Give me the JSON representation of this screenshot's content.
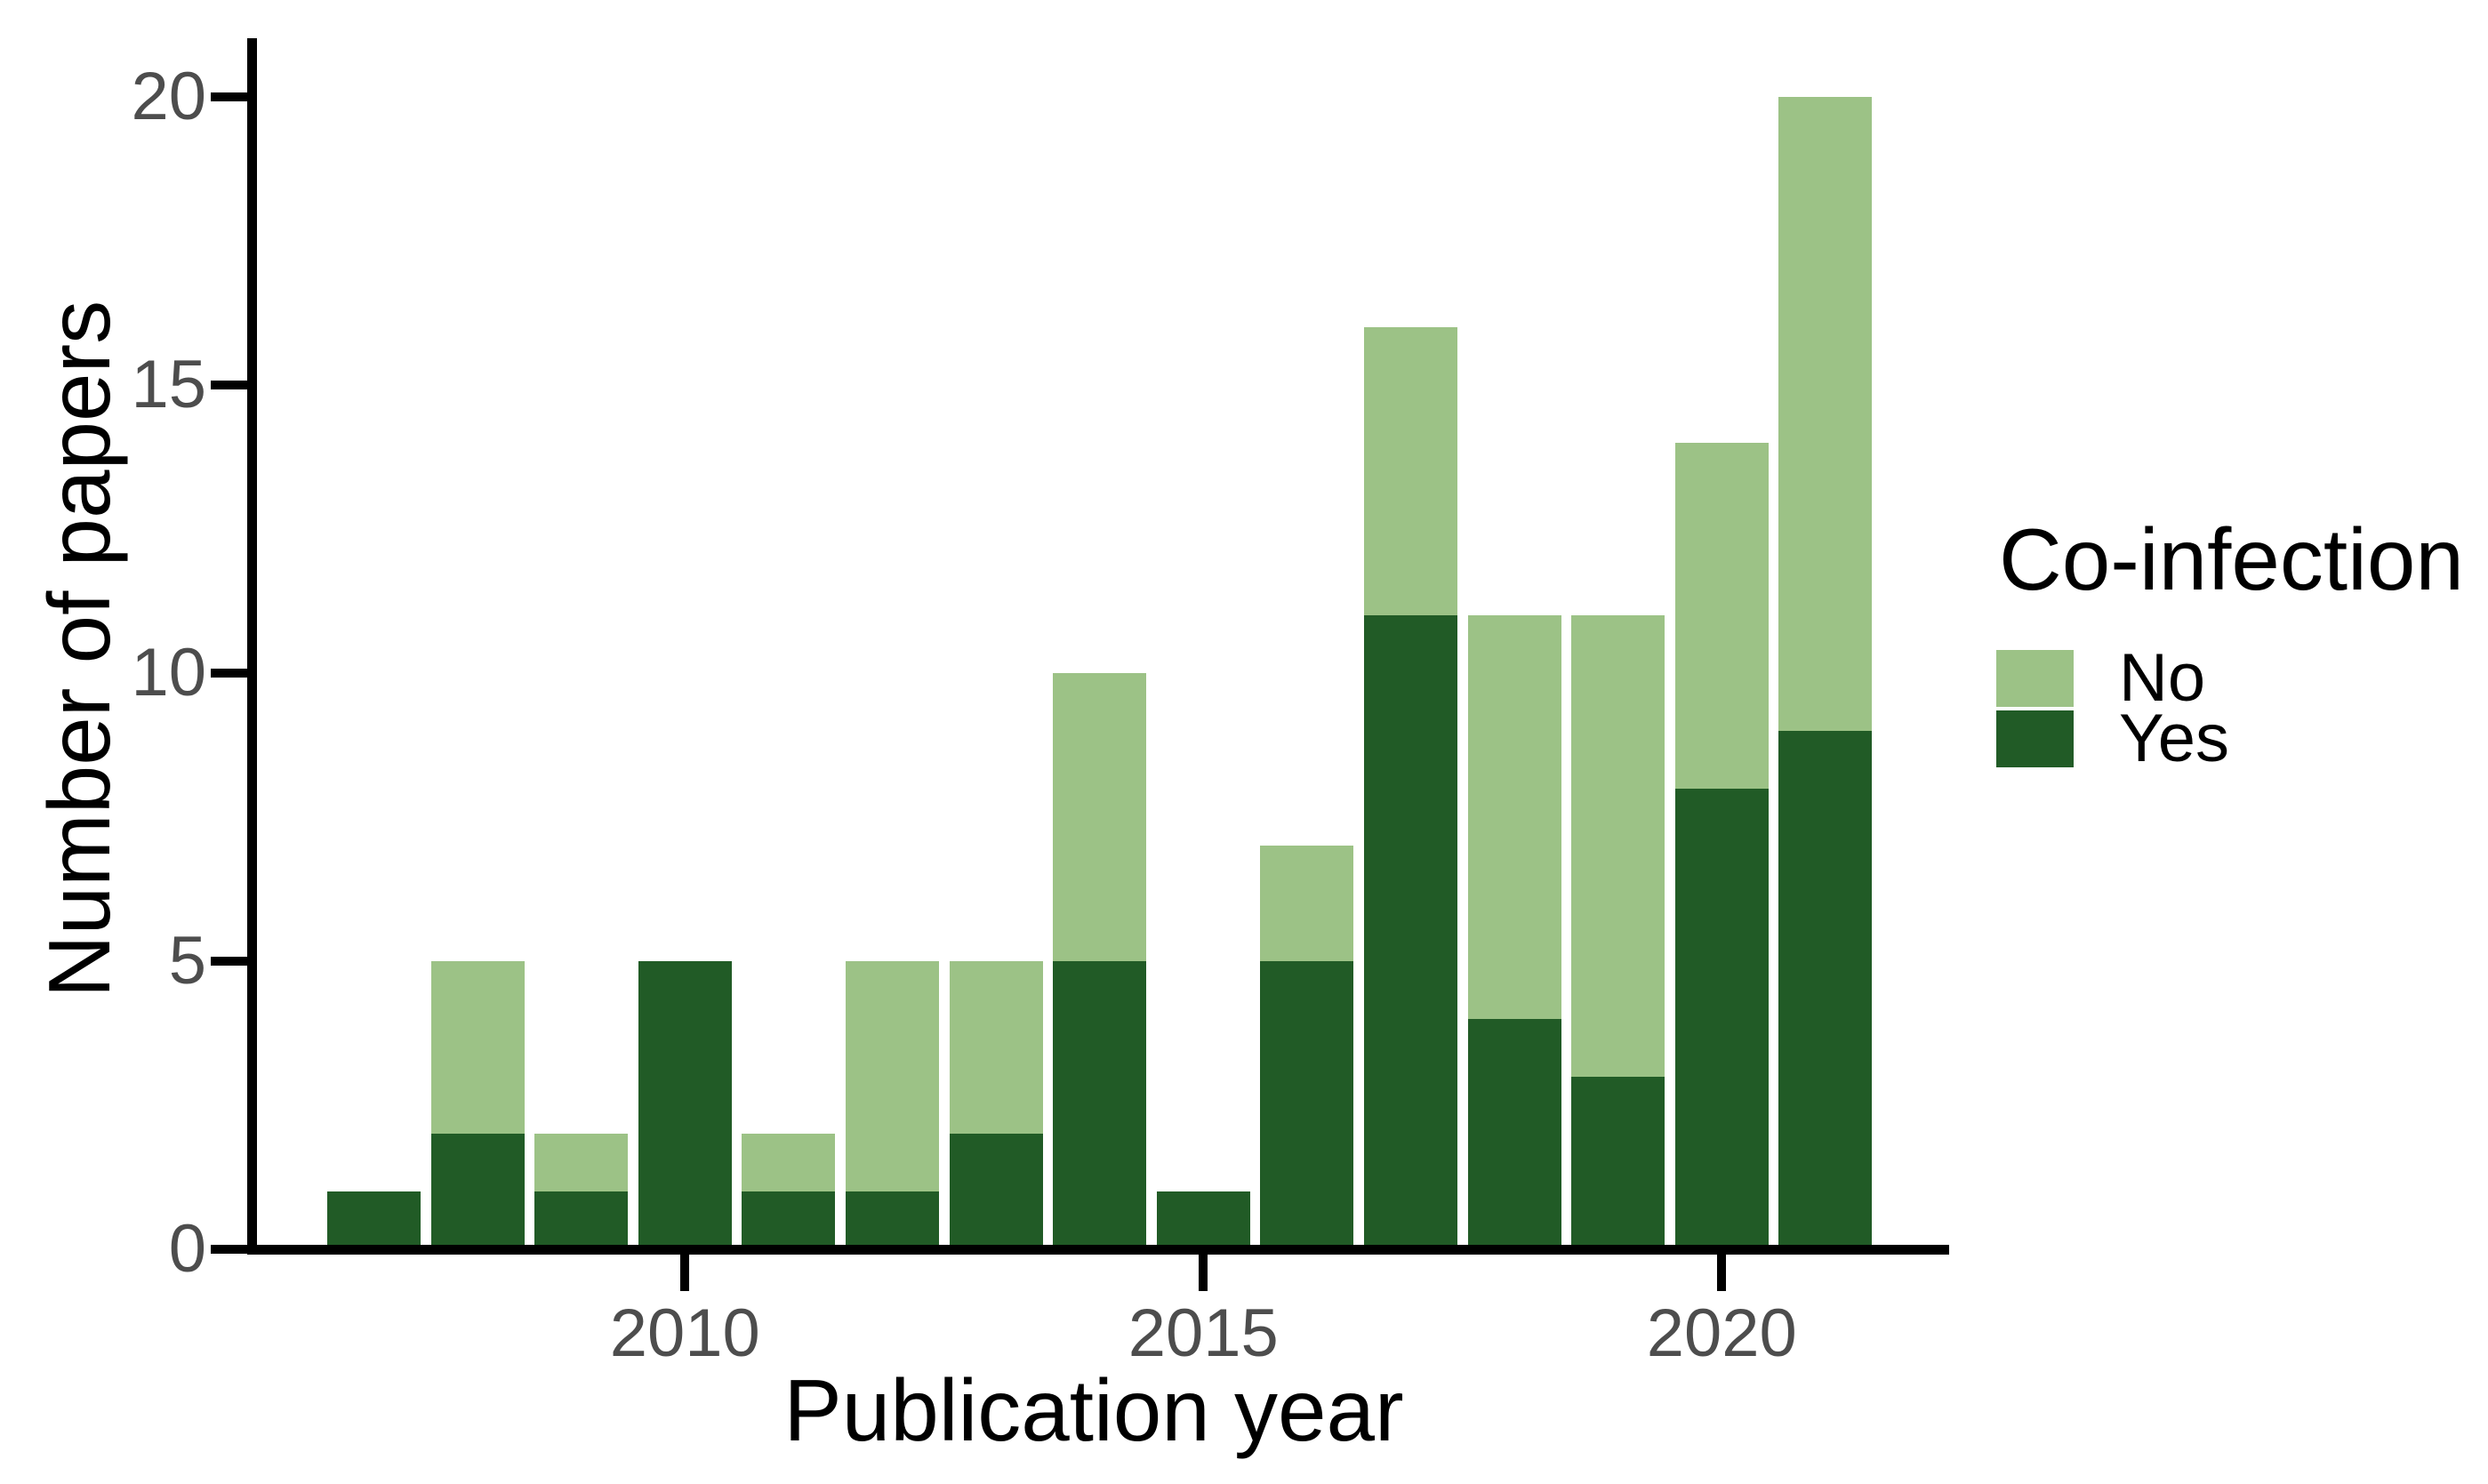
{
  "chart_data": {
    "type": "bar",
    "stacked": true,
    "title": "",
    "xlabel": "Publication year",
    "ylabel": "Number of papers",
    "categories": [
      2007,
      2008,
      2009,
      2010,
      2011,
      2012,
      2013,
      2014,
      2015,
      2016,
      2017,
      2018,
      2019,
      2020,
      2021
    ],
    "series": [
      {
        "name": "No",
        "color": "#9CC286",
        "values": [
          0,
          3,
          1,
          0,
          1,
          4,
          3,
          5,
          0,
          2,
          5,
          7,
          8,
          6,
          11
        ]
      },
      {
        "name": "Yes",
        "color": "#215B26",
        "values": [
          1,
          2,
          1,
          5,
          1,
          1,
          2,
          5,
          1,
          5,
          11,
          4,
          3,
          8,
          9
        ]
      }
    ],
    "stack_order_bottom_to_top": [
      "Yes",
      "No"
    ],
    "x_ticks": [
      2010,
      2015,
      2020
    ],
    "y_ticks": [
      0,
      5,
      10,
      15,
      20
    ],
    "ylim": [
      0,
      20
    ],
    "grid": false,
    "legend": {
      "title": "Co-infection",
      "position": "right",
      "items": [
        {
          "label": "No",
          "color": "#9CC286"
        },
        {
          "label": "Yes",
          "color": "#215B26"
        }
      ]
    },
    "colors": {
      "axis_line": "#000000",
      "tick_label": "#4D4D4D",
      "title_text": "#000000",
      "background": "#FFFFFF"
    }
  }
}
